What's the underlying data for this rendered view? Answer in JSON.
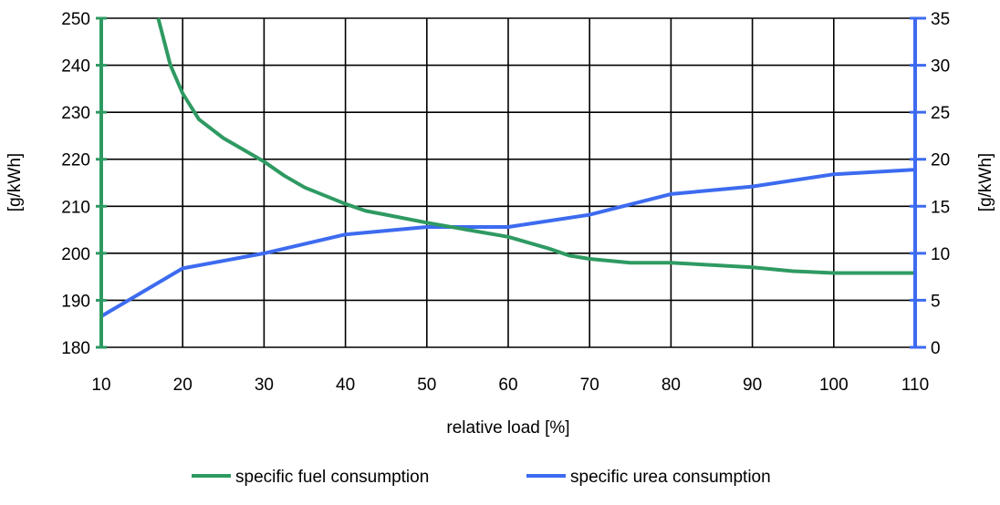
{
  "chart_data": {
    "type": "line",
    "xlabel": "relative load [%]",
    "ylabel_left": "[g/kWh]",
    "ylabel_right": "[g/kWh]",
    "xlim": [
      10,
      110
    ],
    "ylim_left": [
      180,
      250
    ],
    "ylim_right": [
      0,
      35
    ],
    "x_ticks": [
      10,
      20,
      30,
      40,
      50,
      60,
      70,
      80,
      90,
      100,
      110
    ],
    "y_left_ticks": [
      180,
      190,
      200,
      210,
      220,
      230,
      240,
      250
    ],
    "y_right_ticks": [
      0,
      5,
      10,
      15,
      20,
      25,
      30,
      35
    ],
    "grid": true,
    "legend_position": "bottom",
    "series": [
      {
        "name": "specific fuel consumption",
        "axis": "left",
        "color": "#2e9a62",
        "x": [
          17,
          18.5,
          20,
          22,
          25,
          28,
          30,
          32.5,
          35,
          40,
          42.5,
          45,
          50,
          55,
          60,
          65,
          67.5,
          70,
          75,
          80,
          85,
          90,
          95,
          100,
          105,
          110
        ],
        "y": [
          250,
          240,
          234,
          228.5,
          224.5,
          221.5,
          219.5,
          216.5,
          214,
          210.5,
          209,
          208.2,
          206.5,
          205,
          203.5,
          201,
          199.5,
          198.8,
          198,
          198,
          197.5,
          197,
          196.2,
          195.8,
          195.8,
          195.8
        ]
      },
      {
        "name": "specific urea consumption",
        "axis": "right",
        "color": "#3d6bf0",
        "x": [
          10,
          20,
          30,
          40,
          50,
          60,
          70,
          80,
          90,
          100,
          110
        ],
        "y": [
          3.3,
          8.4,
          10.0,
          12.0,
          12.8,
          12.8,
          14.1,
          16.3,
          17.1,
          18.4,
          18.9
        ]
      }
    ]
  }
}
